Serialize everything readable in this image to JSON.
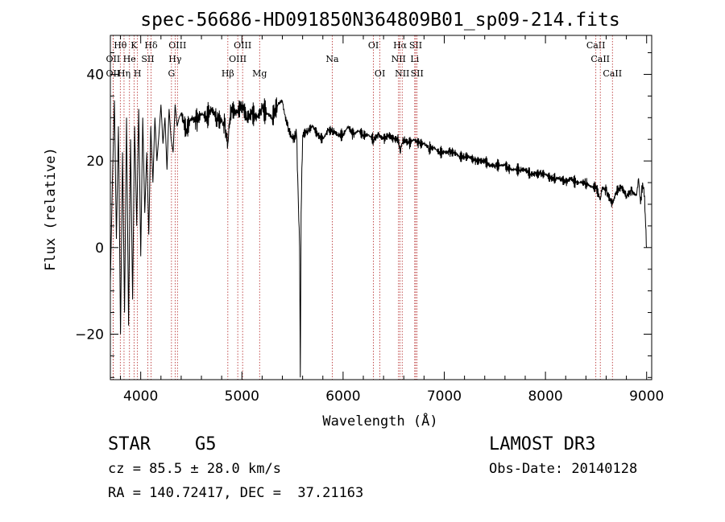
{
  "chart_data": {
    "type": "line",
    "title": "spec-56686-HD091850N364809B01_sp09-214.fits",
    "xlabel": "Wavelength (Å)",
    "ylabel": "Flux (relative)",
    "xlim": [
      3700,
      9050
    ],
    "ylim": [
      -30.5,
      49
    ],
    "xticks": [
      4000,
      5000,
      6000,
      7000,
      8000,
      9000
    ],
    "yticks": [
      -20,
      0,
      20,
      40
    ],
    "series": [
      {
        "name": "flux",
        "x": [
          3700,
          3720,
          3740,
          3760,
          3780,
          3800,
          3820,
          3840,
          3860,
          3880,
          3900,
          3920,
          3940,
          3960,
          3980,
          4000,
          4020,
          4040,
          4060,
          4080,
          4100,
          4120,
          4140,
          4160,
          4180,
          4200,
          4220,
          4240,
          4260,
          4280,
          4300,
          4320,
          4340,
          4360,
          4380,
          4400,
          4450,
          4500,
          4550,
          4600,
          4650,
          4700,
          4750,
          4800,
          4830,
          4861,
          4880,
          4900,
          4950,
          5000,
          5050,
          5100,
          5150,
          5200,
          5250,
          5300,
          5350,
          5400,
          5420,
          5450,
          5500,
          5540,
          5570,
          5577,
          5585,
          5600,
          5650,
          5700,
          5750,
          5800,
          5850,
          5900,
          5950,
          6000,
          6050,
          6100,
          6150,
          6200,
          6250,
          6300,
          6350,
          6400,
          6450,
          6500,
          6550,
          6563,
          6580,
          6600,
          6650,
          6700,
          6750,
          6800,
          6850,
          6900,
          6950,
          7000,
          7050,
          7100,
          7150,
          7200,
          7250,
          7300,
          7350,
          7400,
          7450,
          7500,
          7550,
          7600,
          7650,
          7700,
          7750,
          7800,
          7850,
          7900,
          7950,
          8000,
          8050,
          8100,
          8150,
          8200,
          8250,
          8300,
          8350,
          8400,
          8450,
          8500,
          8542,
          8560,
          8600,
          8662,
          8700,
          8750,
          8800,
          8850,
          8900,
          8920,
          8940,
          8960,
          8980,
          8990,
          9000
        ],
        "values": [
          -8,
          15,
          34,
          2,
          28,
          -20,
          22,
          -15,
          30,
          -18,
          25,
          -12,
          28,
          5,
          32,
          -2,
          30,
          8,
          22,
          3,
          28,
          15,
          30,
          20,
          26,
          33,
          24,
          30,
          18,
          32,
          25,
          22,
          33,
          28,
          30,
          31,
          27,
          30,
          29,
          31,
          30,
          32,
          30,
          29,
          28,
          24,
          30,
          32,
          31,
          33,
          30,
          31,
          30,
          32,
          31,
          30,
          33,
          34,
          31,
          28,
          25,
          26,
          0,
          -30,
          8,
          26,
          27,
          28,
          26,
          25,
          27,
          27,
          26,
          26,
          28,
          26,
          27,
          26,
          26,
          25,
          26,
          25,
          26,
          25,
          25,
          22,
          24,
          25,
          24,
          25,
          24,
          24,
          23,
          23,
          22,
          22,
          22,
          22,
          21,
          21,
          21,
          20,
          20,
          20,
          19,
          19,
          19,
          19,
          18,
          18,
          18,
          18,
          17,
          17,
          17,
          17,
          16,
          16,
          16,
          15,
          16,
          15,
          15,
          15,
          14,
          14,
          11,
          14,
          13,
          10,
          13,
          14,
          12,
          13,
          12,
          16,
          10,
          15,
          12,
          5,
          0
        ]
      }
    ],
    "lines": [
      {
        "label": "Hθ",
        "wl": 3798,
        "row": 1
      },
      {
        "label": "K",
        "wl": 3934,
        "row": 1
      },
      {
        "label": "Hδ",
        "wl": 4102,
        "row": 1
      },
      {
        "label": "OIII",
        "wl": 4363,
        "row": 1
      },
      {
        "label": "OIII",
        "wl": 5007,
        "row": 1
      },
      {
        "label": "OI",
        "wl": 6300,
        "row": 1
      },
      {
        "label": "Hα",
        "wl": 6563,
        "row": 1
      },
      {
        "label": "SII",
        "wl": 6717,
        "row": 1
      },
      {
        "label": "CaII",
        "wl": 8498,
        "row": 1
      },
      {
        "label": "OII",
        "wl": 3727,
        "row": 2
      },
      {
        "label": "He",
        "wl": 3889,
        "row": 2
      },
      {
        "label": "SII",
        "wl": 4070,
        "row": 2
      },
      {
        "label": "Hγ",
        "wl": 4340,
        "row": 2
      },
      {
        "label": "OIII",
        "wl": 4959,
        "row": 2
      },
      {
        "label": "Na",
        "wl": 5893,
        "row": 2
      },
      {
        "label": "NII",
        "wl": 6548,
        "row": 2
      },
      {
        "label": "Li",
        "wl": 6708,
        "row": 2
      },
      {
        "label": "CaII",
        "wl": 8542,
        "row": 2
      },
      {
        "label": "OII",
        "wl": 3727,
        "row": 3
      },
      {
        "label": "Hη",
        "wl": 3835,
        "row": 3
      },
      {
        "label": "H",
        "wl": 3968,
        "row": 3
      },
      {
        "label": "G",
        "wl": 4304,
        "row": 3
      },
      {
        "label": "Hβ",
        "wl": 4861,
        "row": 3
      },
      {
        "label": "Mg",
        "wl": 5175,
        "row": 3
      },
      {
        "label": "OI",
        "wl": 6364,
        "row": 3
      },
      {
        "label": "NII",
        "wl": 6584,
        "row": 3
      },
      {
        "label": "SII",
        "wl": 6731,
        "row": 3
      },
      {
        "label": "CaII",
        "wl": 8662,
        "row": 3
      }
    ]
  },
  "info": {
    "class": "STAR",
    "subclass": "G5",
    "survey": "LAMOST DR3",
    "cz": "cz = 85.5 ± 28.0 km/s",
    "obs_date": "Obs-Date: 20140128",
    "radec": "RA = 140.72417, DEC =  37.21163"
  },
  "colors": {
    "line_marker": "#b22222",
    "spectrum": "#000000"
  }
}
